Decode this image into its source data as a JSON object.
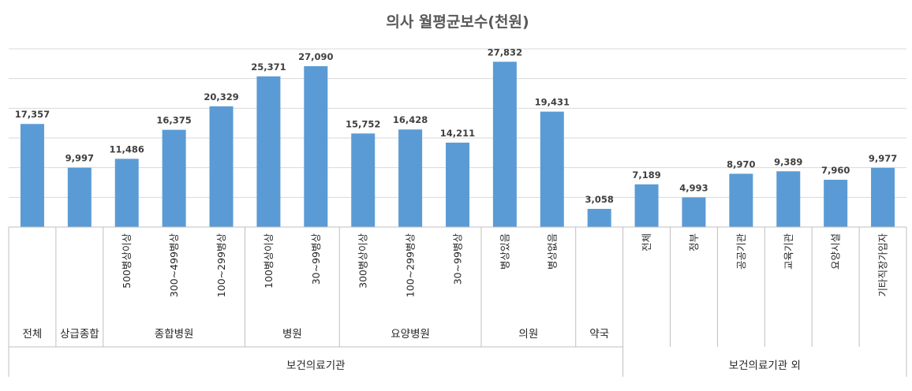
{
  "chart_data": {
    "type": "bar",
    "title": "의사 월평균보수(천원)",
    "xlabel": "",
    "ylabel": "",
    "ylim": [
      0,
      30000
    ],
    "grid": true,
    "legend": "none",
    "bar_color": "#5b9bd5",
    "categories": [
      "전체",
      "상급종합",
      "500병상이상",
      "300~499병상",
      "100~299병상",
      "100병상이상",
      "30~99병상",
      "300병상이상",
      "100~299병상",
      "30~99병상",
      "병상있음",
      "병상없음",
      "약국",
      "전체",
      "정부",
      "공공기관",
      "교육기관",
      "요양시설",
      "기타직장가입자"
    ],
    "values": [
      17357,
      9997,
      11486,
      16375,
      20329,
      25371,
      27090,
      15752,
      16428,
      14211,
      27832,
      19431,
      3058,
      7189,
      4993,
      8970,
      9389,
      7960,
      9977
    ],
    "value_labels": [
      "17,357",
      "9,997",
      "11,486",
      "16,375",
      "20,329",
      "25,371",
      "27,090",
      "15,752",
      "16,428",
      "14,211",
      "27,832",
      "19,431",
      "3,058",
      "7,189",
      "4,993",
      "8,970",
      "9,389",
      "7,960",
      "9,977"
    ],
    "groups": [
      {
        "label": "전체",
        "start": 0,
        "end": 0
      },
      {
        "label": "상급종합",
        "start": 1,
        "end": 1
      },
      {
        "label": "종합병원",
        "start": 2,
        "end": 4
      },
      {
        "label": "병원",
        "start": 5,
        "end": 6
      },
      {
        "label": "요양병원",
        "start": 7,
        "end": 9
      },
      {
        "label": "의원",
        "start": 10,
        "end": 11
      },
      {
        "label": "약국",
        "start": 12,
        "end": 12
      }
    ],
    "supergroups": [
      {
        "label": "보건의료기관",
        "start": 0,
        "end": 12
      },
      {
        "label": "보건의료기관 외",
        "start": 13,
        "end": 18
      }
    ]
  }
}
